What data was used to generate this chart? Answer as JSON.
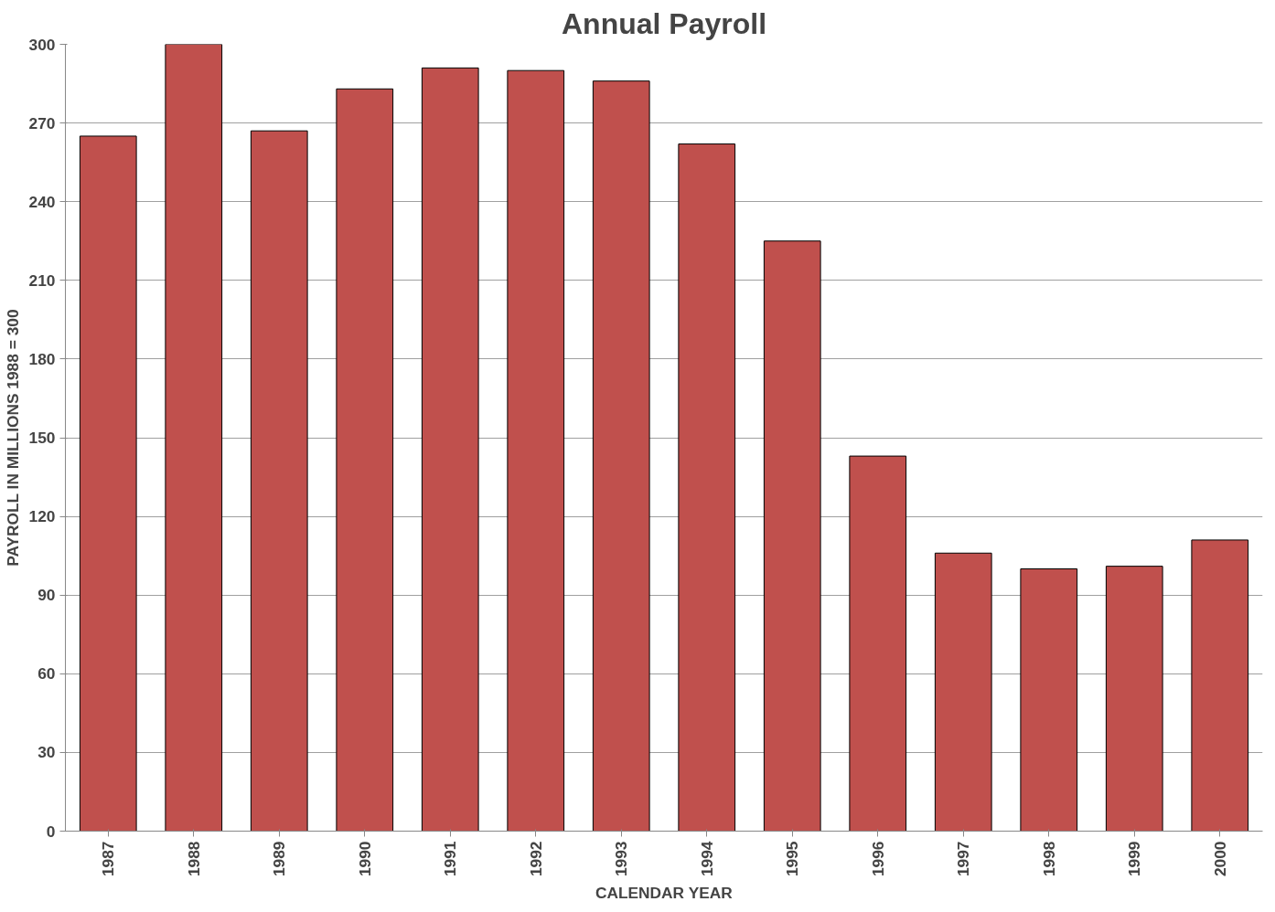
{
  "chart_data": {
    "type": "bar",
    "title": "Annual Payroll",
    "xlabel": "CALENDAR YEAR",
    "ylabel": "PAYROLL IN MILLIONS 1988 = 300",
    "categories": [
      "1987",
      "1988",
      "1989",
      "1990",
      "1991",
      "1992",
      "1993",
      "1994",
      "1995",
      "1996",
      "1997",
      "1998",
      "1999",
      "2000"
    ],
    "values": [
      265,
      300,
      267,
      283,
      291,
      290,
      286,
      262,
      225,
      143,
      106,
      100,
      101,
      111
    ],
    "color": "#c0504d",
    "ylim": [
      0,
      300
    ],
    "yticks": [
      0,
      30,
      60,
      90,
      120,
      150,
      180,
      210,
      240,
      270,
      300
    ],
    "grid": "y"
  }
}
